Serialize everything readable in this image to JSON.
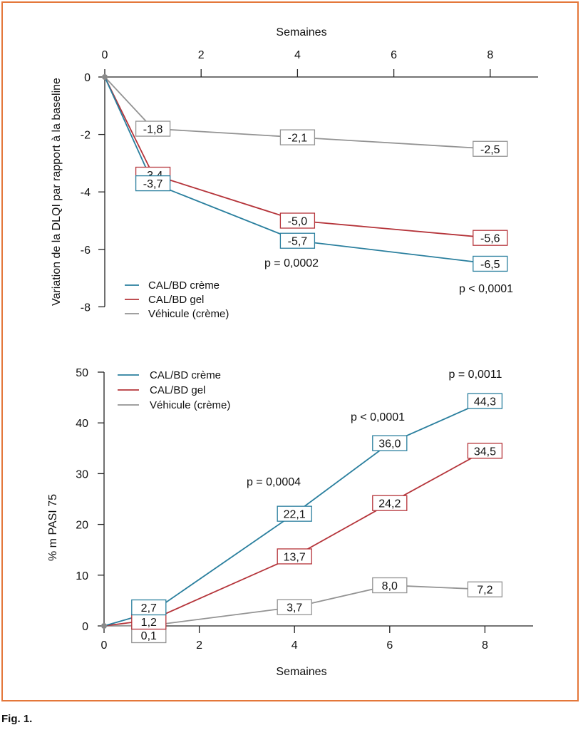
{
  "figure_caption": "Fig. 1.",
  "chart_data": [
    {
      "type": "line",
      "xlabel": "Semaines",
      "ylabel": "Variation de la DLQI par rapport à la baseline",
      "xlim": [
        0,
        8
      ],
      "ylim": [
        -8,
        0
      ],
      "x_ticks": [
        "0",
        "2",
        "4",
        "6",
        "8"
      ],
      "y_ticks": [
        "0",
        "-2",
        "-4",
        "-6",
        "-8"
      ],
      "x_axis_position": "top",
      "legend_position": "bottom-left",
      "grid": false,
      "series": [
        {
          "name": "CAL/BD crème",
          "color": "#2a7f9e",
          "x": [
            0,
            1,
            4,
            8
          ],
          "values": [
            0,
            -3.7,
            -5.7,
            -6.5
          ],
          "labels": [
            "",
            "-3,7",
            "-5,7",
            "-6,5"
          ]
        },
        {
          "name": "CAL/BD gel",
          "color": "#b5343a",
          "x": [
            0,
            1,
            4,
            8
          ],
          "values": [
            0,
            -3.4,
            -5.0,
            -5.6
          ],
          "labels": [
            "",
            "-3,4",
            "-5,0",
            "-5,6"
          ]
        },
        {
          "name": "Véhicule (crème)",
          "color": "#939393",
          "x": [
            0,
            1,
            4,
            8
          ],
          "values": [
            0,
            -1.8,
            -2.1,
            -2.5
          ],
          "labels": [
            "",
            "-1,8",
            "-2,1",
            "-2,5"
          ]
        }
      ],
      "annotations": [
        "p = 0,0002",
        "p < 0,0001"
      ]
    },
    {
      "type": "line",
      "xlabel": "Semaines",
      "ylabel": "% m PASI 75",
      "xlim": [
        0,
        8
      ],
      "ylim": [
        0,
        50
      ],
      "x_ticks": [
        "0",
        "2",
        "4",
        "6",
        "8"
      ],
      "y_ticks": [
        "0",
        "10",
        "20",
        "30",
        "40",
        "50"
      ],
      "x_axis_position": "bottom",
      "legend_position": "top-left",
      "grid": false,
      "series": [
        {
          "name": "CAL/BD crème",
          "color": "#2a7f9e",
          "x": [
            0,
            1,
            4,
            6,
            8
          ],
          "values": [
            0,
            2.7,
            22.1,
            36.0,
            44.3
          ],
          "labels": [
            "",
            "2,7",
            "22,1",
            "36,0",
            "44,3"
          ]
        },
        {
          "name": "CAL/BD gel",
          "color": "#b5343a",
          "x": [
            0,
            1,
            4,
            6,
            8
          ],
          "values": [
            0,
            1.2,
            13.7,
            24.2,
            34.5
          ],
          "labels": [
            "",
            "1,2",
            "13,7",
            "24,2",
            "34,5"
          ]
        },
        {
          "name": "Véhicule (crème)",
          "color": "#939393",
          "x": [
            0,
            1,
            4,
            6,
            8
          ],
          "values": [
            0,
            0.1,
            3.7,
            8.0,
            7.2
          ],
          "labels": [
            "",
            "0,1",
            "3,7",
            "8,0",
            "7,2"
          ]
        }
      ],
      "annotations": [
        "p = 0,0004",
        "p < 0,0001",
        "p = 0,0011"
      ]
    }
  ]
}
